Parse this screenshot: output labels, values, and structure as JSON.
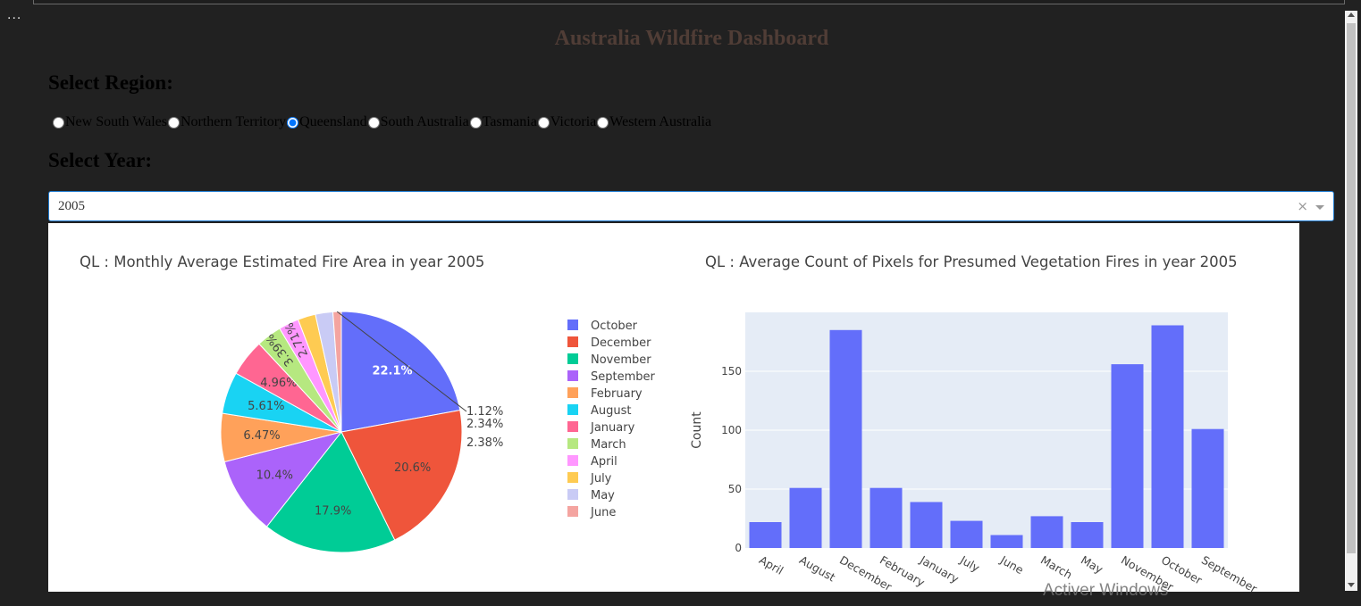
{
  "menu": {
    "dots": "..."
  },
  "title": "Australia Wildfire Dashboard",
  "region": {
    "label": "Select Region:",
    "options": [
      "New South Wales",
      "Northern Territory",
      "Queensland",
      "South Australia",
      "Tasmania",
      "Victoria",
      "Western Australia"
    ],
    "selected": "Queensland"
  },
  "year": {
    "label": "Select Year:",
    "value": "2005",
    "clear": "×"
  },
  "watermark": "Activer Windows",
  "colors": {
    "title": "#503d36",
    "bar": "#636efa",
    "plot_bg": "#e5ecf6"
  },
  "chart_data": [
    {
      "type": "pie",
      "title": "QL : Monthly Average Estimated Fire Area in year 2005",
      "labels": [
        "October",
        "December",
        "November",
        "September",
        "February",
        "August",
        "January",
        "March",
        "April",
        "July",
        "May",
        "June"
      ],
      "values": [
        22.1,
        20.6,
        17.9,
        10.4,
        6.47,
        5.61,
        4.96,
        3.39,
        2.71,
        2.38,
        2.34,
        1.12
      ],
      "slice_labels": [
        "22.1%",
        "20.6%",
        "17.9%",
        "10.4%",
        "6.47%",
        "5.61%",
        "4.96%",
        "3.39%",
        "2.71%",
        "2.38%",
        "2.34%",
        "1.12%"
      ],
      "colors": [
        "#636efa",
        "#ef553b",
        "#00cc96",
        "#ab63fa",
        "#ffa15a",
        "#19d3f3",
        "#ff6692",
        "#b6e880",
        "#ff97ff",
        "#fecb52",
        "#c9cbf5",
        "#f4a4a0"
      ],
      "legend_position": "right"
    },
    {
      "type": "bar",
      "title": "QL : Average Count of Pixels for Presumed Vegetation Fires in year 2005",
      "categories": [
        "April",
        "August",
        "December",
        "February",
        "January",
        "July",
        "June",
        "March",
        "May",
        "November",
        "October",
        "September"
      ],
      "values": [
        22,
        51,
        185,
        51,
        39,
        23,
        11,
        27,
        22,
        156,
        189,
        101
      ],
      "ylabel": "Count",
      "xlabel": "",
      "ylim": [
        0,
        200
      ],
      "yticks": [
        0,
        50,
        100,
        150
      ],
      "grid": true
    }
  ]
}
